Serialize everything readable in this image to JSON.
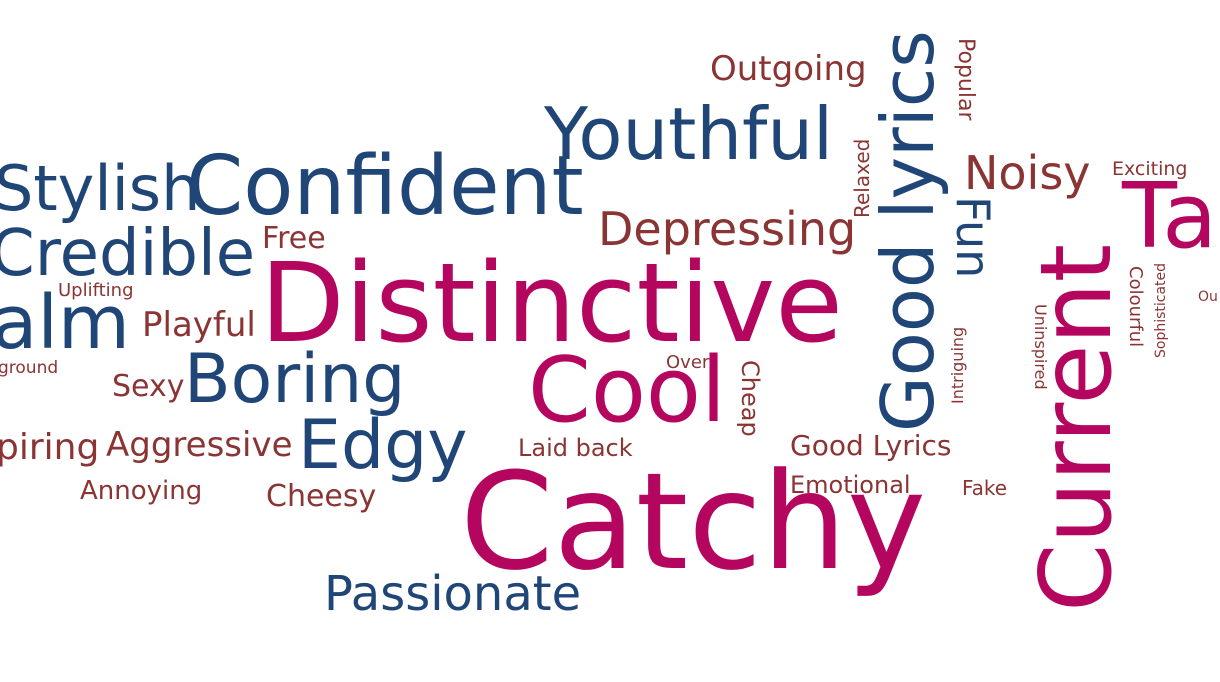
{
  "colors": {
    "magenta": "#b5065f",
    "navy": "#1f4677",
    "maroon": "#8b3434"
  },
  "words": {
    "distinctive": "Distinctive",
    "catchy": "Catchy",
    "current": "Current",
    "cool": "Cool",
    "tall_partial": "Ta",
    "confident": "Confident",
    "youthful": "Youthful",
    "good_lyrics_vertical": "Good lyrics",
    "stylish": "Stylish",
    "credible": "Credible",
    "calm_partial": "alm",
    "boring": "Boring",
    "edgy": "Edgy",
    "passionate": "Passionate",
    "fun": "Fun",
    "depressing": "Depressing",
    "noisy": "Noisy",
    "outgoing": "Outgoing",
    "free": "Free",
    "playful": "Playful",
    "sexy": "Sexy",
    "aggressive": "Aggressive",
    "inspiring_partial": "piring",
    "annoying": "Annoying",
    "cheesy": "Cheesy",
    "laid_back": "Laid back",
    "good_lyrics_small": "Good Lyrics",
    "emotional": "Emotional",
    "fake": "Fake",
    "uplifting": "Uplifting",
    "background_partial": "ground",
    "over": "Over",
    "cheap": "Cheap",
    "relaxed": "Relaxed",
    "popular": "Popular",
    "exciting": "Exciting",
    "colourful": "Colourful",
    "sophisticated": "Sophisticated",
    "uninspired": "Uninspired",
    "intriguing": "Intriguing",
    "ou_partial": "Ou"
  }
}
